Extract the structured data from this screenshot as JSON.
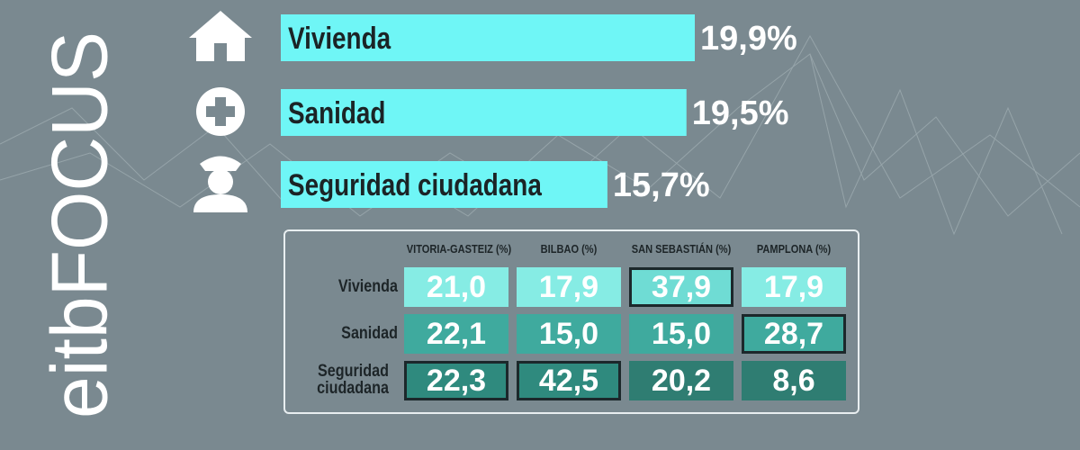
{
  "brand": "eitbFOCUS",
  "chart_data": {
    "type": "bar",
    "orientation": "horizontal",
    "categories": [
      "Vivienda",
      "Sanidad",
      "Seguridad ciudadana"
    ],
    "values": [
      19.9,
      19.5,
      15.7
    ],
    "value_labels": [
      "19,9%",
      "19,5%",
      "15,7%"
    ],
    "color": "#6ff6f6"
  },
  "table": {
    "columns": [
      "VITORIA-GASTEIZ (%)",
      "BILBAO (%)",
      "SAN SEBASTIÁN (%)",
      "PAMPLONA (%)"
    ],
    "rows": [
      {
        "label": "Vivienda",
        "cells": [
          "21,0",
          "17,9",
          "37,9",
          "17,9"
        ]
      },
      {
        "label": "Sanidad",
        "cells": [
          "22,1",
          "15,0",
          "15,0",
          "28,7"
        ]
      },
      {
        "label": "Seguridad ciudadana",
        "cells": [
          "22,3",
          "42,5",
          "20,2",
          "8,6"
        ]
      }
    ]
  }
}
